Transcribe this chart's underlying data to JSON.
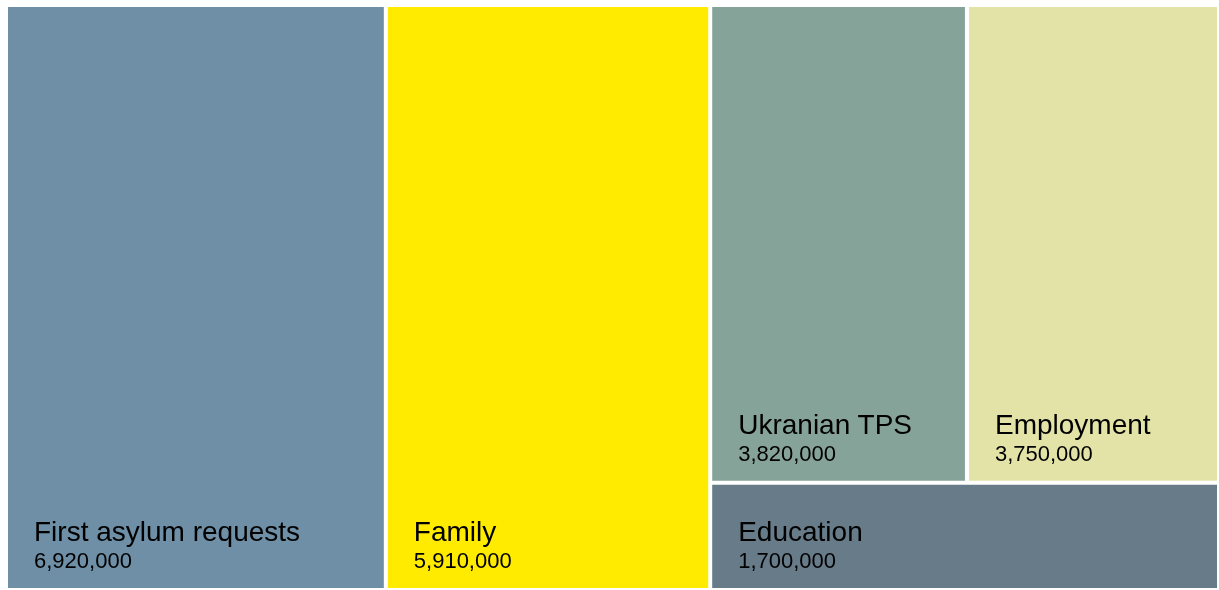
{
  "chart_data": {
    "type": "other",
    "categories": [
      "First asylum requests",
      "Family",
      "Ukranian TPS",
      "Employment",
      "Education"
    ],
    "values": [
      6920000,
      5910000,
      3820000,
      3750000,
      1700000
    ],
    "colors": [
      "#6e8fa6",
      "#ffeb00",
      "#86a39a",
      "#e3e3a8",
      "#677b89"
    ],
    "value_labels": [
      "6,920,000",
      "5,910,000",
      "3,820,000",
      "3,750,000",
      "1,700,000"
    ]
  }
}
